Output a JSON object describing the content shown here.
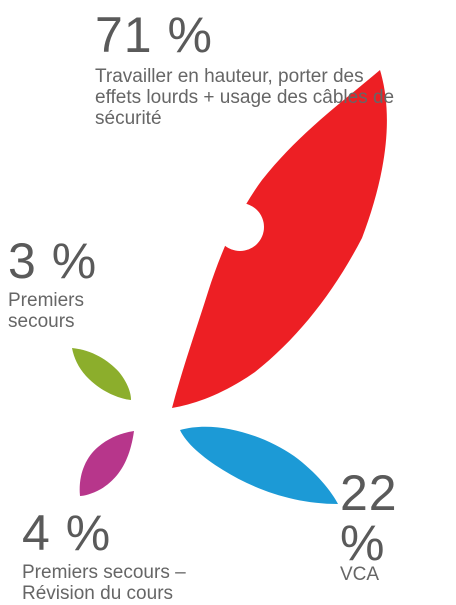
{
  "chart_data": {
    "type": "pie",
    "title": "",
    "slices": [
      {
        "label_id": "s0",
        "value": 71,
        "value_text": "71 %",
        "label": "Travailler en hauteur, porter des effets lourds + usage des câbles de sécurité",
        "color": "#ed1f24"
      },
      {
        "label_id": "s1",
        "value": 22,
        "value_text": "22 %",
        "label": "VCA",
        "color": "#1c9ad6"
      },
      {
        "label_id": "s2",
        "value": 4,
        "value_text": "4 %",
        "label": "Premiers secours – Révision du cours",
        "color": "#b7368b"
      },
      {
        "label_id": "s3",
        "value": 3,
        "value_text": "3 %",
        "label": "Premiers secours",
        "color": "#8cae2c"
      }
    ]
  }
}
